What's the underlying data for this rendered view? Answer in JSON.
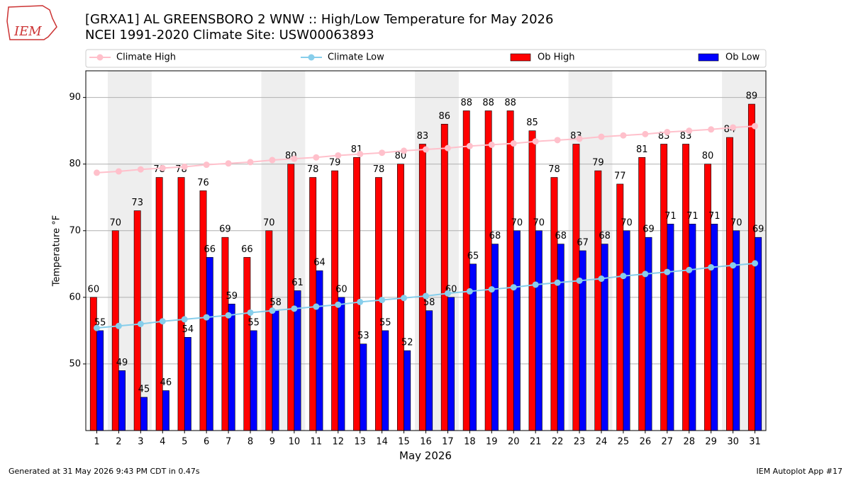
{
  "chart_data": {
    "type": "bar",
    "title": "[GRXA1] AL GREENSBORO 2 WNW :: High/Low Temperature for May 2026",
    "subtitle": "NCEI 1991-2020 Climate Site: USW00063893",
    "logo": "IEM",
    "footer_left": "Generated at 31 May 2026 9:43 PM CDT in 0.47s",
    "footer_right": "IEM Autoplot App #17",
    "x_label": "May 2026",
    "y_label": "Temperature °F",
    "x": [
      1,
      2,
      3,
      4,
      5,
      6,
      7,
      8,
      9,
      10,
      11,
      12,
      13,
      14,
      15,
      16,
      17,
      18,
      19,
      20,
      21,
      22,
      23,
      24,
      25,
      26,
      27,
      28,
      29,
      30,
      31
    ],
    "xlim": [
      0.5,
      31.5
    ],
    "xticks": [
      1,
      2,
      3,
      4,
      5,
      6,
      7,
      8,
      9,
      10,
      11,
      12,
      13,
      14,
      15,
      16,
      17,
      18,
      19,
      20,
      21,
      22,
      23,
      24,
      25,
      26,
      27,
      28,
      29,
      30,
      31
    ],
    "ylim": [
      40,
      94
    ],
    "yticks": [
      50,
      60,
      70,
      80,
      90
    ],
    "grid": true,
    "shaded": [
      [
        1.5,
        3.5
      ],
      [
        8.5,
        10.5
      ],
      [
        15.5,
        17.5
      ],
      [
        22.5,
        24.5
      ],
      [
        29.5,
        31.5
      ]
    ],
    "series": [
      {
        "name": "Climate High",
        "type": "line",
        "color": "#ffc0cb",
        "values": [
          78.7,
          78.9,
          79.2,
          79.4,
          79.6,
          79.9,
          80.1,
          80.3,
          80.6,
          80.8,
          81.0,
          81.3,
          81.5,
          81.7,
          82.0,
          82.2,
          82.4,
          82.7,
          82.9,
          83.1,
          83.4,
          83.6,
          83.8,
          84.1,
          84.3,
          84.5,
          84.8,
          85.0,
          85.2,
          85.5,
          85.7
        ]
      },
      {
        "name": "Climate Low",
        "type": "line",
        "color": "#87ceeb",
        "values": [
          55.4,
          55.7,
          56.0,
          56.4,
          56.7,
          57.0,
          57.3,
          57.7,
          58.0,
          58.3,
          58.6,
          58.9,
          59.3,
          59.6,
          59.9,
          60.2,
          60.6,
          60.9,
          61.2,
          61.5,
          61.9,
          62.2,
          62.5,
          62.8,
          63.2,
          63.5,
          63.8,
          64.1,
          64.5,
          64.8,
          65.1
        ]
      },
      {
        "name": "Ob High",
        "type": "bar",
        "color": "#ff0000",
        "values": [
          60,
          70,
          73,
          78,
          78,
          76,
          69,
          66,
          70,
          80,
          78,
          79,
          81,
          78,
          80,
          83,
          86,
          88,
          88,
          88,
          85,
          78,
          83,
          79,
          77,
          81,
          83,
          83,
          80,
          84,
          89
        ]
      },
      {
        "name": "Ob Low",
        "type": "bar",
        "color": "#0000ff",
        "values": [
          55,
          49,
          45,
          46,
          54,
          66,
          59,
          55,
          58,
          61,
          64,
          60,
          53,
          55,
          52,
          58,
          60,
          65,
          68,
          70,
          70,
          68,
          67,
          68,
          70,
          69,
          71,
          71,
          71,
          70,
          69
        ]
      }
    ]
  }
}
